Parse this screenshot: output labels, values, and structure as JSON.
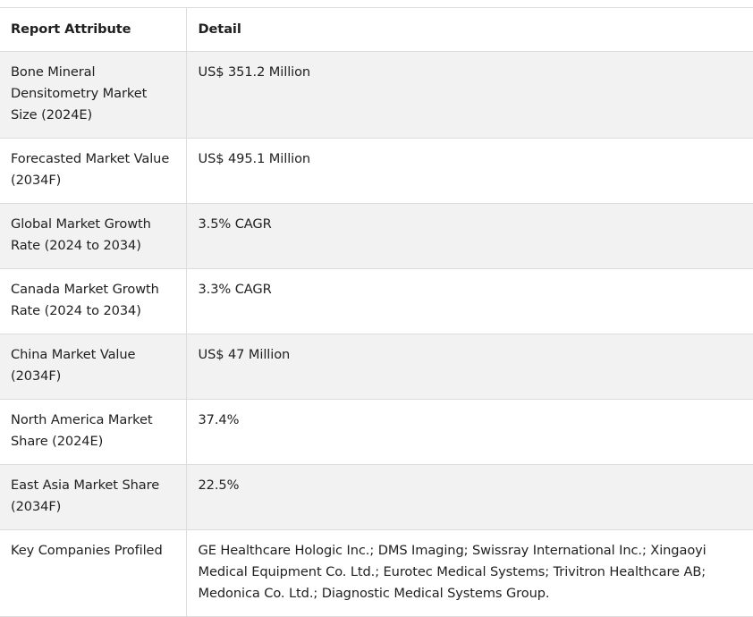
{
  "table": {
    "headers": [
      "Report Attribute",
      "Detail"
    ],
    "rows": [
      [
        "Bone Mineral Densitometry Market Size (2024E)",
        "US$ 351.2 Million"
      ],
      [
        "Forecasted Market Value (2034F)",
        "US$ 495.1 Million"
      ],
      [
        "Global Market Growth Rate (2024 to 2034)",
        "3.5% CAGR"
      ],
      [
        "Canada Market Growth Rate (2024 to 2034)",
        "3.3% CAGR"
      ],
      [
        "China Market Value (2034F)",
        "US$ 47 Million"
      ],
      [
        "North America Market Share (2024E)",
        "37.4%"
      ],
      [
        "East Asia Market Share (2034F)",
        "22.5%"
      ],
      [
        "Key Companies Profiled",
        "GE Healthcare Hologic Inc.; DMS Imaging; Swissray International Inc.; Xingaoyi Medical Equipment Co. Ltd.; Eurotec Medical Systems; Trivitron Healthcare AB; Medonica Co. Ltd.; Diagnostic Medical Systems Group."
      ]
    ]
  }
}
